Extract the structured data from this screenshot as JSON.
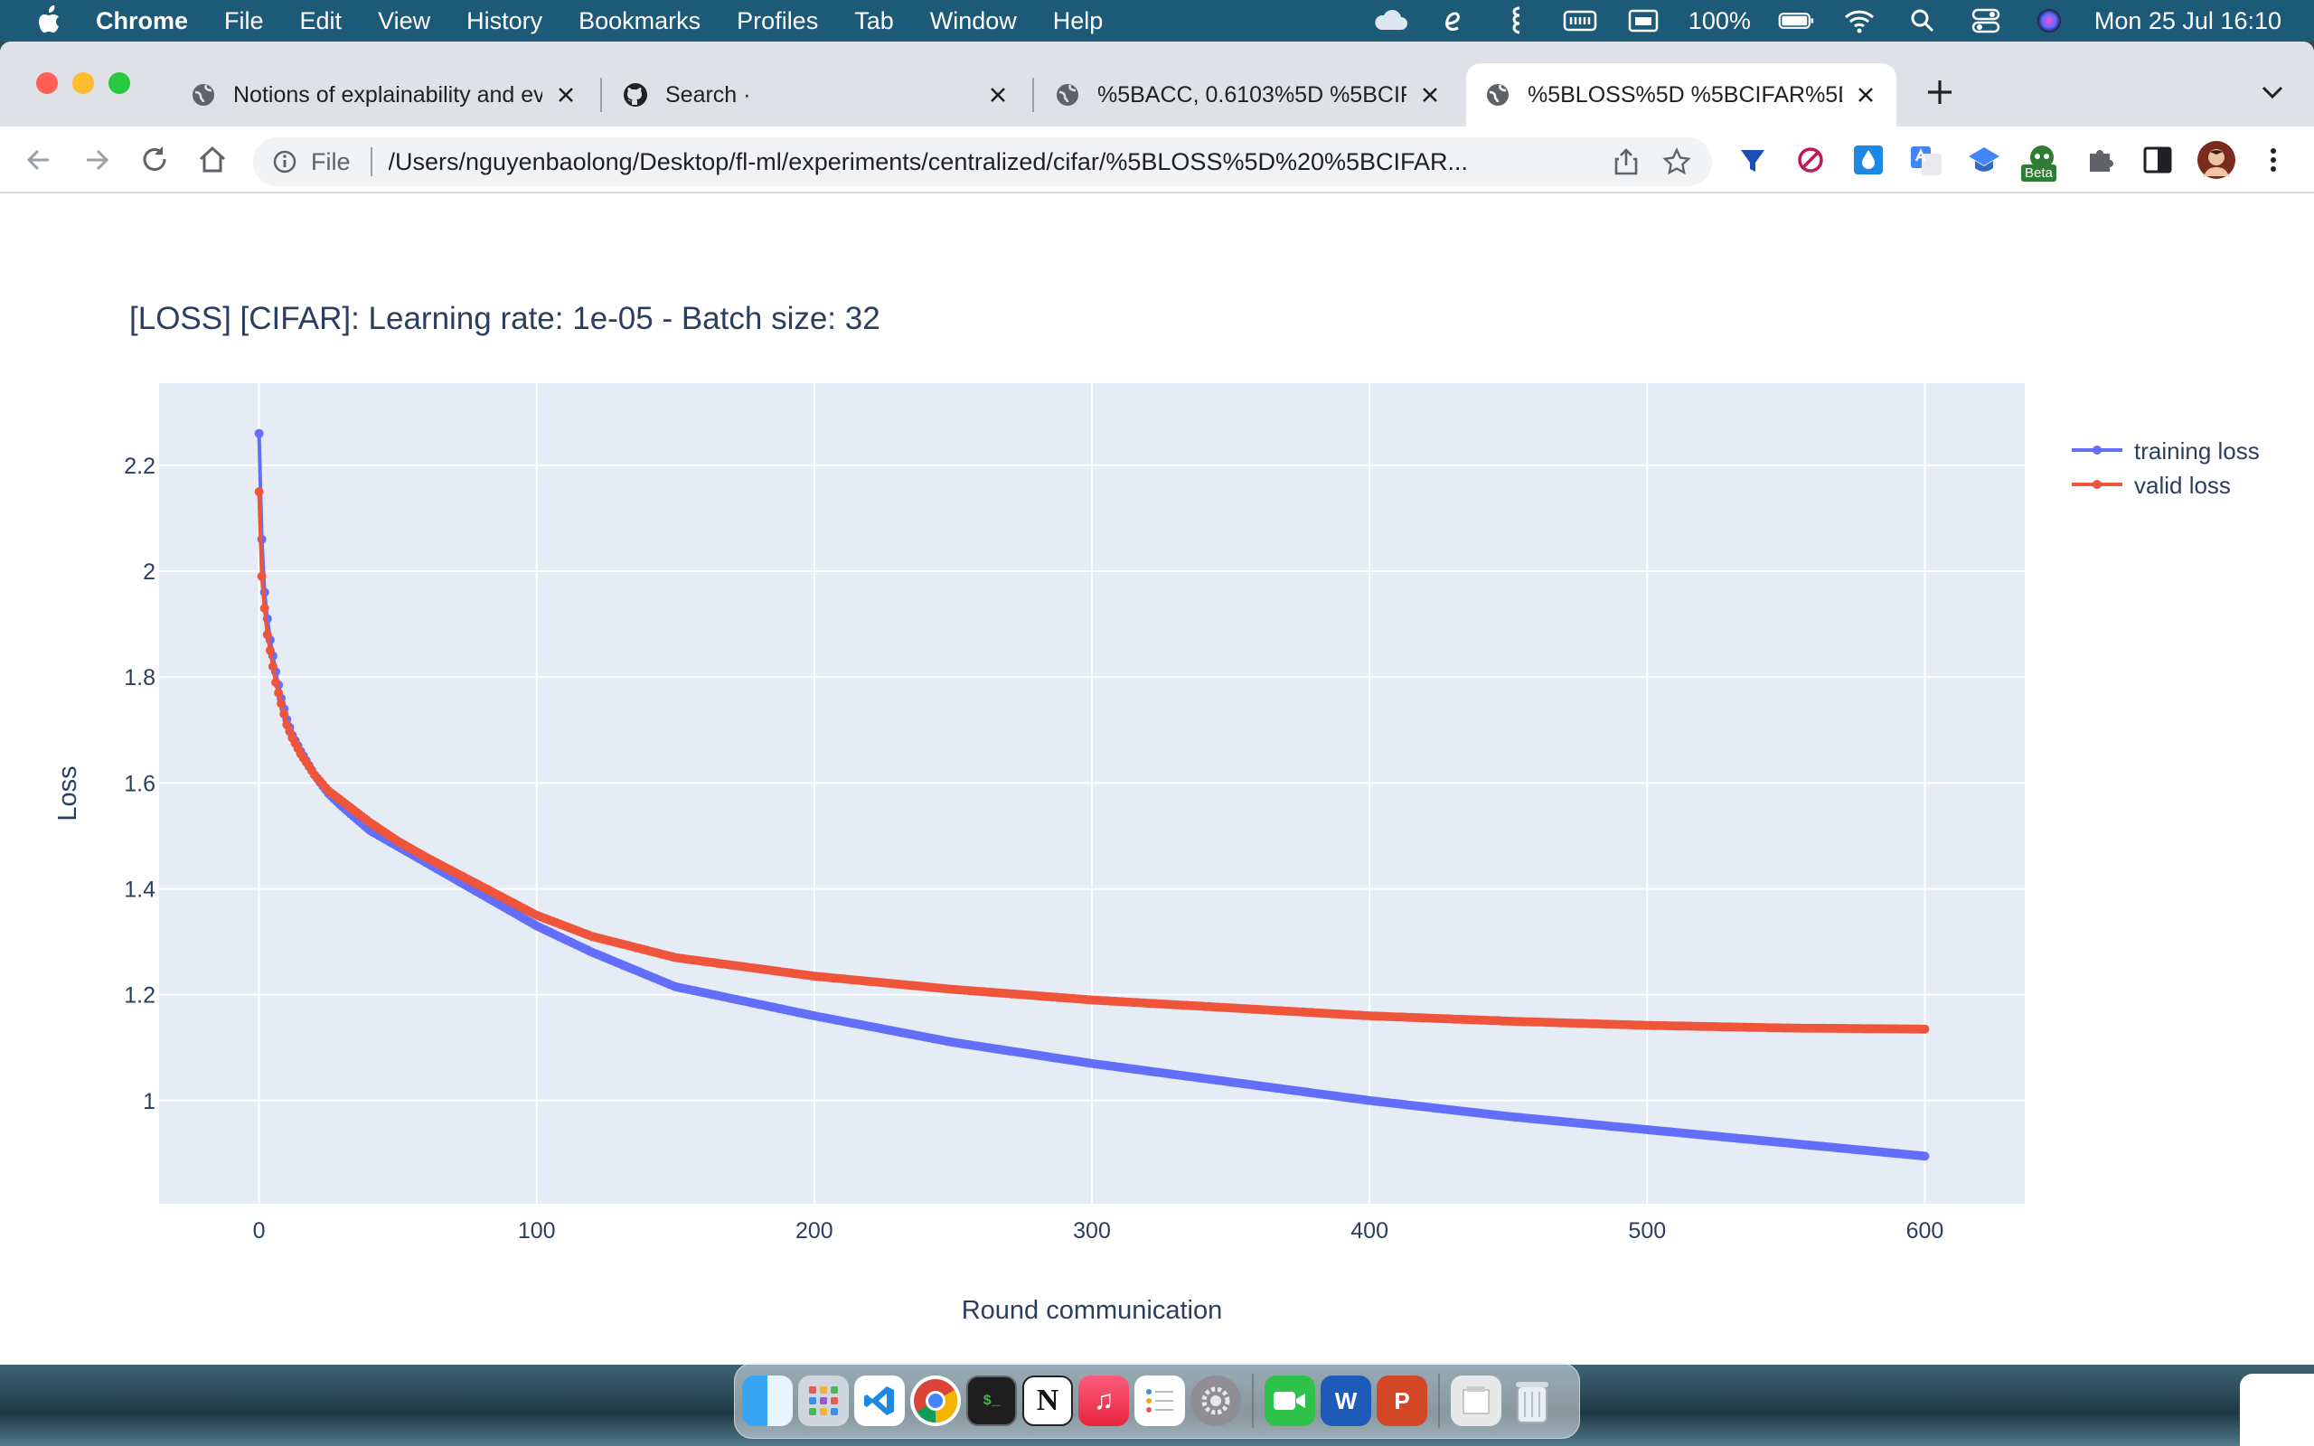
{
  "menubar": {
    "items": [
      "Chrome",
      "File",
      "Edit",
      "View",
      "History",
      "Bookmarks",
      "Profiles",
      "Tab",
      "Window",
      "Help"
    ],
    "battery": "100%",
    "datetime": "Mon 25 Jul  16:10"
  },
  "tabs": [
    {
      "title": "Notions of explainability and ev",
      "active": false
    },
    {
      "title": "Search ·",
      "active": false
    },
    {
      "title": "%5BACC, 0.6103%5D %5BCIF",
      "active": false
    },
    {
      "title": "%5BLOSS%5D %5BCIFAR%5D",
      "active": true
    }
  ],
  "omnibox": {
    "scheme": "File",
    "url": "/Users/nguyenbaolong/Desktop/fl-ml/experiments/centralized/cifar/%5BLOSS%5D%20%5BCIFAR..."
  },
  "extension_badge": "Beta",
  "colors": {
    "training": "#636efa",
    "valid": "#ef553b",
    "plot_bg": "#e5ecf6",
    "menubar": "#1d5a78",
    "text": "#2a3f5f"
  },
  "icons": [
    "apple-icon",
    "icloud-icon",
    "e-icon",
    "script-icon",
    "keyboard-icon",
    "window-icon",
    "battery-icon",
    "wifi-icon",
    "spotlight-icon",
    "control-center-icon",
    "siri-icon",
    "globe-icon",
    "github-icon",
    "back-icon",
    "forward-icon",
    "reload-icon",
    "home-icon",
    "info-icon",
    "share-icon",
    "star-icon",
    "puzzle-icon",
    "sidepanel-icon",
    "avatar"
  ],
  "dock": [
    "Finder",
    "Launchpad",
    "VS Code",
    "Chrome",
    "Terminal",
    "Notion",
    "Music",
    "Reminders",
    "System Preferences",
    "FaceTime",
    "Word",
    "PowerPoint",
    "Files",
    "Trash"
  ],
  "chart_data": {
    "type": "line",
    "title": "[LOSS] [CIFAR]: Learning rate: 1e-05 - Batch size: 32",
    "xlabel": "Round communication",
    "ylabel": "Loss",
    "xlim": [
      -36,
      636
    ],
    "ylim": [
      0.805,
      2.355
    ],
    "x_ticks": [
      0,
      100,
      200,
      300,
      400,
      500,
      600
    ],
    "x_tick_labels": [
      "0",
      "100",
      "200",
      "300",
      "400",
      "500",
      "600"
    ],
    "y_ticks": [
      1,
      1.2,
      1.4,
      1.6,
      1.8,
      2,
      2.2
    ],
    "y_tick_labels": [
      "1",
      "1.2",
      "1.4",
      "1.6",
      "1.8",
      "2",
      "2.2"
    ],
    "grid": true,
    "markers": "lines+markers",
    "legend_position": "top-right, outside plot",
    "series": [
      {
        "name": "training loss",
        "x": [
          0,
          1,
          2,
          3,
          4,
          5,
          6,
          8,
          10,
          12,
          15,
          20,
          25,
          30,
          40,
          50,
          60,
          80,
          100,
          120,
          150,
          200,
          250,
          300,
          350,
          400,
          450,
          500,
          550,
          600
        ],
        "y": [
          2.26,
          2.06,
          1.96,
          1.91,
          1.87,
          1.84,
          1.81,
          1.76,
          1.72,
          1.69,
          1.66,
          1.615,
          1.58,
          1.555,
          1.51,
          1.48,
          1.45,
          1.39,
          1.33,
          1.28,
          1.215,
          1.16,
          1.11,
          1.07,
          1.035,
          1.0,
          0.97,
          0.945,
          0.92,
          0.895
        ]
      },
      {
        "name": "valid loss",
        "x": [
          0,
          1,
          2,
          3,
          4,
          5,
          6,
          8,
          10,
          12,
          15,
          20,
          25,
          30,
          40,
          50,
          60,
          80,
          100,
          120,
          150,
          200,
          250,
          300,
          350,
          400,
          450,
          500,
          550,
          600
        ],
        "y": [
          2.15,
          1.99,
          1.93,
          1.88,
          1.85,
          1.82,
          1.79,
          1.75,
          1.71,
          1.685,
          1.655,
          1.615,
          1.585,
          1.565,
          1.525,
          1.49,
          1.46,
          1.405,
          1.35,
          1.31,
          1.27,
          1.235,
          1.21,
          1.19,
          1.175,
          1.16,
          1.15,
          1.142,
          1.137,
          1.135
        ]
      }
    ]
  }
}
